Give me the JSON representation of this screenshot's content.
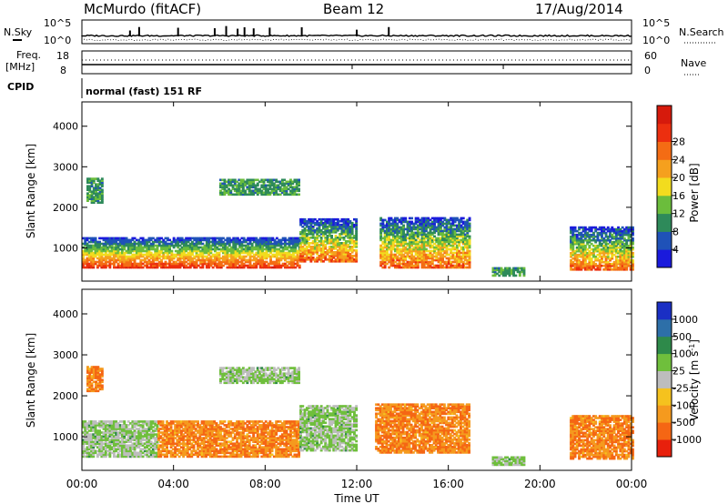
{
  "header": {
    "station": "McMurdo (fitACF)",
    "beam": "Beam 12",
    "date": "17/Aug/2014"
  },
  "top_panels": {
    "nsky_label": "N.Sky",
    "nsearch_label": "N.Search",
    "scale_top": "10^5",
    "scale_bottom": "10^0",
    "freq_label_1": "Freq.",
    "freq_label_2": "[MHz]",
    "freq_ticks": [
      "18",
      "8"
    ],
    "nave_label": "Nave",
    "nave_ticks": [
      "60",
      "0"
    ],
    "cpid_label": "CPID",
    "cpid_text": "normal (fast) 151 RF"
  },
  "chart_data": [
    {
      "type": "heatmap",
      "name": "power",
      "ylabel": "Slant Range [km]",
      "xlabel": "",
      "x_ticks": [
        "00:00",
        "04:00",
        "08:00",
        "12:00",
        "16:00",
        "20:00",
        "00:00"
      ],
      "y_ticks": [
        1000,
        2000,
        3000,
        4000
      ],
      "xlim_hours": [
        0,
        24
      ],
      "ylim": [
        180,
        4600
      ],
      "colorbar_label": "Power [dB]",
      "colorbar_ticks": [
        "4",
        "8",
        "12",
        "16",
        "20",
        "24",
        "28"
      ],
      "colors": [
        "#1a1adc",
        "#1f52b8",
        "#2e8a5a",
        "#6bbd3c",
        "#f2dc1e",
        "#f5a01e",
        "#f46c14",
        "#ec2f0f",
        "#d61a0c"
      ],
      "blobs": [
        {
          "t0": 0.0,
          "t1": 9.5,
          "r0": 500,
          "r1": 1250,
          "pattern": "band_strong"
        },
        {
          "t0": 9.5,
          "t1": 12.0,
          "r0": 650,
          "r1": 1700,
          "pattern": "band_mid"
        },
        {
          "t0": 13.0,
          "t1": 16.9,
          "r0": 500,
          "r1": 1750,
          "pattern": "band_mid"
        },
        {
          "t0": 17.9,
          "t1": 19.3,
          "r0": 300,
          "r1": 520,
          "pattern": "weak"
        },
        {
          "t0": 21.3,
          "t1": 24.0,
          "r0": 450,
          "r1": 1500,
          "pattern": "band_mid"
        },
        {
          "t0": 0.2,
          "t1": 0.9,
          "r0": 2100,
          "r1": 2700,
          "pattern": "weak"
        },
        {
          "t0": 6.0,
          "t1": 9.5,
          "r0": 2300,
          "r1": 2700,
          "pattern": "weak"
        }
      ]
    },
    {
      "type": "heatmap",
      "name": "velocity",
      "ylabel": "Slant Range [km]",
      "xlabel": "Time UT",
      "x_ticks": [
        "00:00",
        "04:00",
        "08:00",
        "12:00",
        "16:00",
        "20:00",
        "00:00"
      ],
      "y_ticks": [
        1000,
        2000,
        3000,
        4000
      ],
      "xlim_hours": [
        0,
        24
      ],
      "ylim": [
        180,
        4600
      ],
      "colorbar_label": "Velocity [m s^-1]",
      "colorbar_ticks": [
        "1000",
        "500",
        "100",
        "25",
        "-25",
        "-100",
        "-500",
        "-1000"
      ],
      "colors": [
        "#1a2fc4",
        "#2d6fa8",
        "#2e8a4a",
        "#6fbf3c",
        "#bdbdbd",
        "#f5c21e",
        "#f59a1e",
        "#f56614",
        "#e8200c"
      ],
      "blobs": [
        {
          "t0": 0.0,
          "t1": 3.3,
          "r0": 500,
          "r1": 1400,
          "pattern": "green"
        },
        {
          "t0": 3.3,
          "t1": 9.5,
          "r0": 500,
          "r1": 1400,
          "pattern": "orange"
        },
        {
          "t0": 9.5,
          "t1": 12.0,
          "r0": 650,
          "r1": 1750,
          "pattern": "green"
        },
        {
          "t0": 12.8,
          "t1": 16.9,
          "r0": 600,
          "r1": 1800,
          "pattern": "orange"
        },
        {
          "t0": 17.9,
          "t1": 19.3,
          "r0": 300,
          "r1": 520,
          "pattern": "green"
        },
        {
          "t0": 21.3,
          "t1": 24.0,
          "r0": 450,
          "r1": 1500,
          "pattern": "orange"
        },
        {
          "t0": 0.2,
          "t1": 0.9,
          "r0": 2100,
          "r1": 2700,
          "pattern": "orange"
        },
        {
          "t0": 6.0,
          "t1": 9.5,
          "r0": 2300,
          "r1": 2700,
          "pattern": "green"
        }
      ]
    }
  ]
}
